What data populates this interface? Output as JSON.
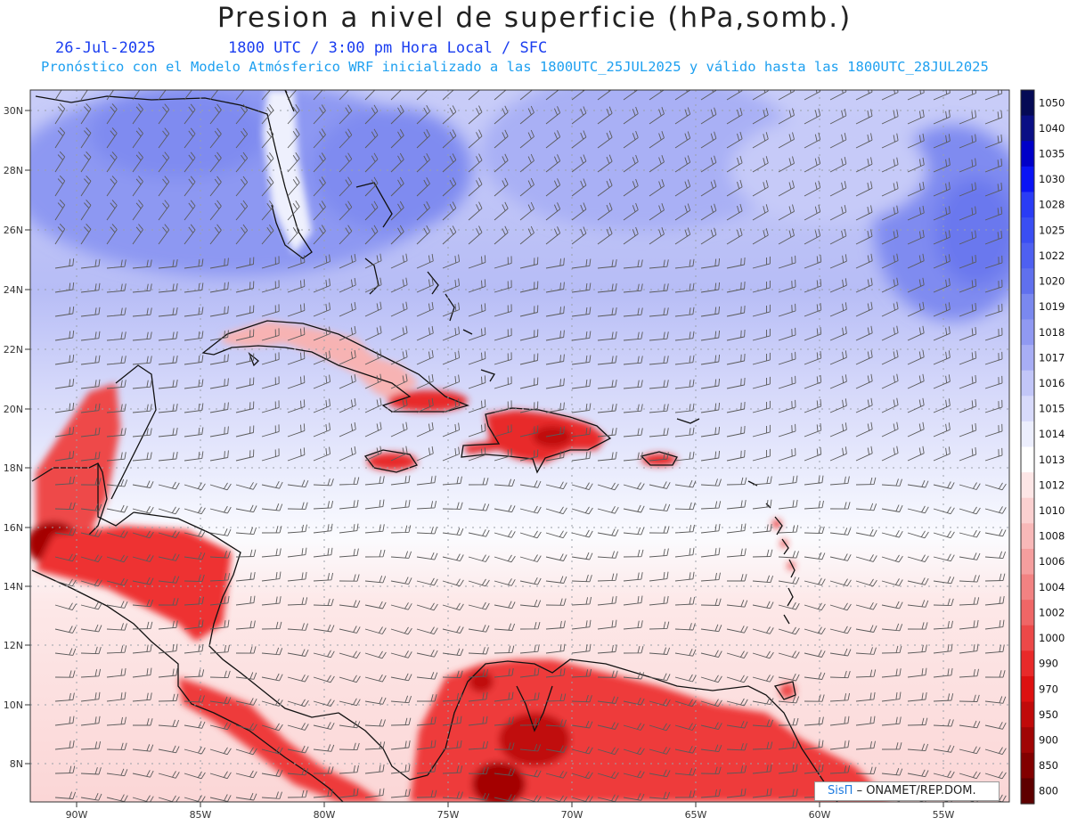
{
  "title": "Presion a nivel de superficie (hPa,somb.)",
  "date": "26-Jul-2025",
  "valid_time": "1800 UTC / 3:00 pm Hora Local / SFC",
  "forecast_note": "Pronóstico con el Modelo Atmósferico WRF inicializado a las 1800UTC_25JUL2025 y válido hasta las  1800UTC_28JUL2025",
  "credit": {
    "brand": "SisΠ",
    "text": "– ONAMET/REP.DOM."
  },
  "axes": {
    "lat_labels": [
      "30N",
      "28N",
      "26N",
      "24N",
      "22N",
      "20N",
      "18N",
      "16N",
      "14N",
      "12N",
      "10N",
      "8N"
    ],
    "lon_labels": [
      "90W",
      "85W",
      "80W",
      "75W",
      "70W",
      "65W",
      "60W",
      "55W"
    ]
  },
  "colorbar": {
    "levels": [
      "1050",
      "1040",
      "1035",
      "1030",
      "1028",
      "1025",
      "1022",
      "1020",
      "1019",
      "1018",
      "1017",
      "1016",
      "1015",
      "1014",
      "1013",
      "1012",
      "1010",
      "1008",
      "1006",
      "1004",
      "1002",
      "1000",
      "990",
      "970",
      "950",
      "900",
      "850",
      "800"
    ],
    "colors": [
      "#050a55",
      "#0a0f85",
      "#0000c8",
      "#0a14f5",
      "#2a3cf5",
      "#3a4ef3",
      "#4e60f1",
      "#6070ee",
      "#7a88ef",
      "#9099f2",
      "#a8aef5",
      "#c2c6f8",
      "#d8dafb",
      "#eceefd",
      "#ffffff",
      "#fde6e6",
      "#fbd0d0",
      "#f8b8b8",
      "#f59e9e",
      "#f28282",
      "#ef6666",
      "#ec4848",
      "#e82a2a",
      "#dd1010",
      "#c00a0a",
      "#a00505",
      "#820000",
      "#5e0000"
    ]
  },
  "map_colors": {
    "high_north": "#8d98f2",
    "mid_blue": "#b7bdf6",
    "pale_blue": "#dde0fb",
    "neutral": "#f6f5fc",
    "pale_red": "#fbd8d8",
    "land_red": "#ee3a3a",
    "deep_red": "#a40505"
  }
}
